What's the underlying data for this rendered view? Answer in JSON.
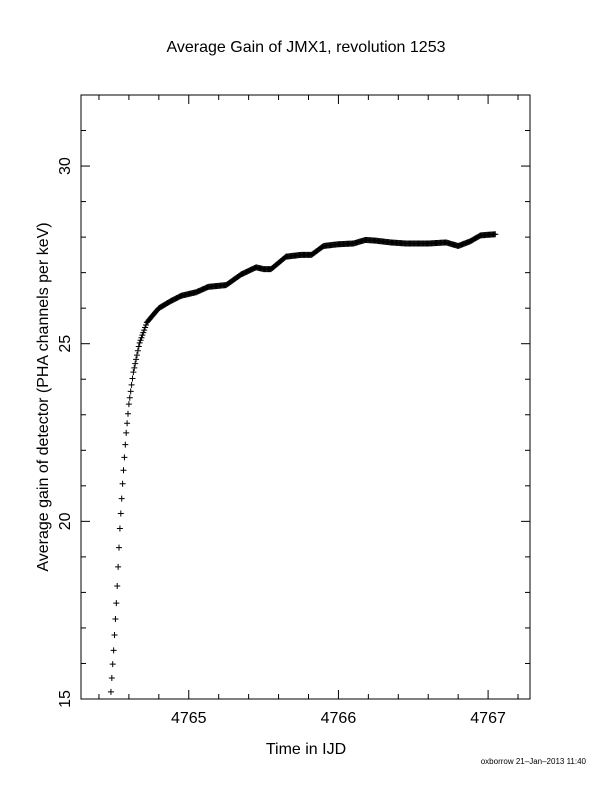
{
  "chart_data": {
    "type": "scatter",
    "title": "Average Gain of JMX1, revolution 1253",
    "xlabel": "Time in IJD",
    "ylabel": "Average gain of detector (PHA channels per keV)",
    "xlim": [
      4764.28,
      4767.28
    ],
    "ylim": [
      15,
      32
    ],
    "x_ticks": [
      4765,
      4766,
      4767
    ],
    "y_ticks": [
      15,
      20,
      25,
      30
    ],
    "marker": "plus",
    "grid": false,
    "legend": "none",
    "curve_knots": [
      [
        4764.48,
        15.2
      ],
      [
        4764.5,
        16.5
      ],
      [
        4764.52,
        18.0
      ],
      [
        4764.54,
        19.8
      ],
      [
        4764.56,
        21.2
      ],
      [
        4764.58,
        22.4
      ],
      [
        4764.6,
        23.3
      ],
      [
        4764.63,
        24.2
      ],
      [
        4764.67,
        25.0
      ],
      [
        4764.72,
        25.6
      ],
      [
        4764.8,
        26.0
      ],
      [
        4764.88,
        26.2
      ],
      [
        4764.95,
        26.35
      ],
      [
        4765.05,
        26.45
      ],
      [
        4765.13,
        26.6
      ],
      [
        4765.25,
        26.65
      ],
      [
        4765.35,
        26.95
      ],
      [
        4765.45,
        27.15
      ],
      [
        4765.5,
        27.1
      ],
      [
        4765.55,
        27.1
      ],
      [
        4765.65,
        27.45
      ],
      [
        4765.75,
        27.5
      ],
      [
        4765.82,
        27.5
      ],
      [
        4765.9,
        27.75
      ],
      [
        4766.0,
        27.8
      ],
      [
        4766.1,
        27.82
      ],
      [
        4766.18,
        27.92
      ],
      [
        4766.25,
        27.9
      ],
      [
        4766.35,
        27.85
      ],
      [
        4766.45,
        27.82
      ],
      [
        4766.6,
        27.82
      ],
      [
        4766.72,
        27.85
      ],
      [
        4766.8,
        27.75
      ],
      [
        4766.88,
        27.88
      ],
      [
        4766.95,
        28.05
      ],
      [
        4767.05,
        28.08
      ]
    ],
    "sample_step": 0.006
  },
  "footer": {
    "stamp": "oxborrow 21–Jan–2013 11:40"
  },
  "colors": {
    "axis": "#000000",
    "marker": "#000000",
    "background": "#ffffff"
  }
}
